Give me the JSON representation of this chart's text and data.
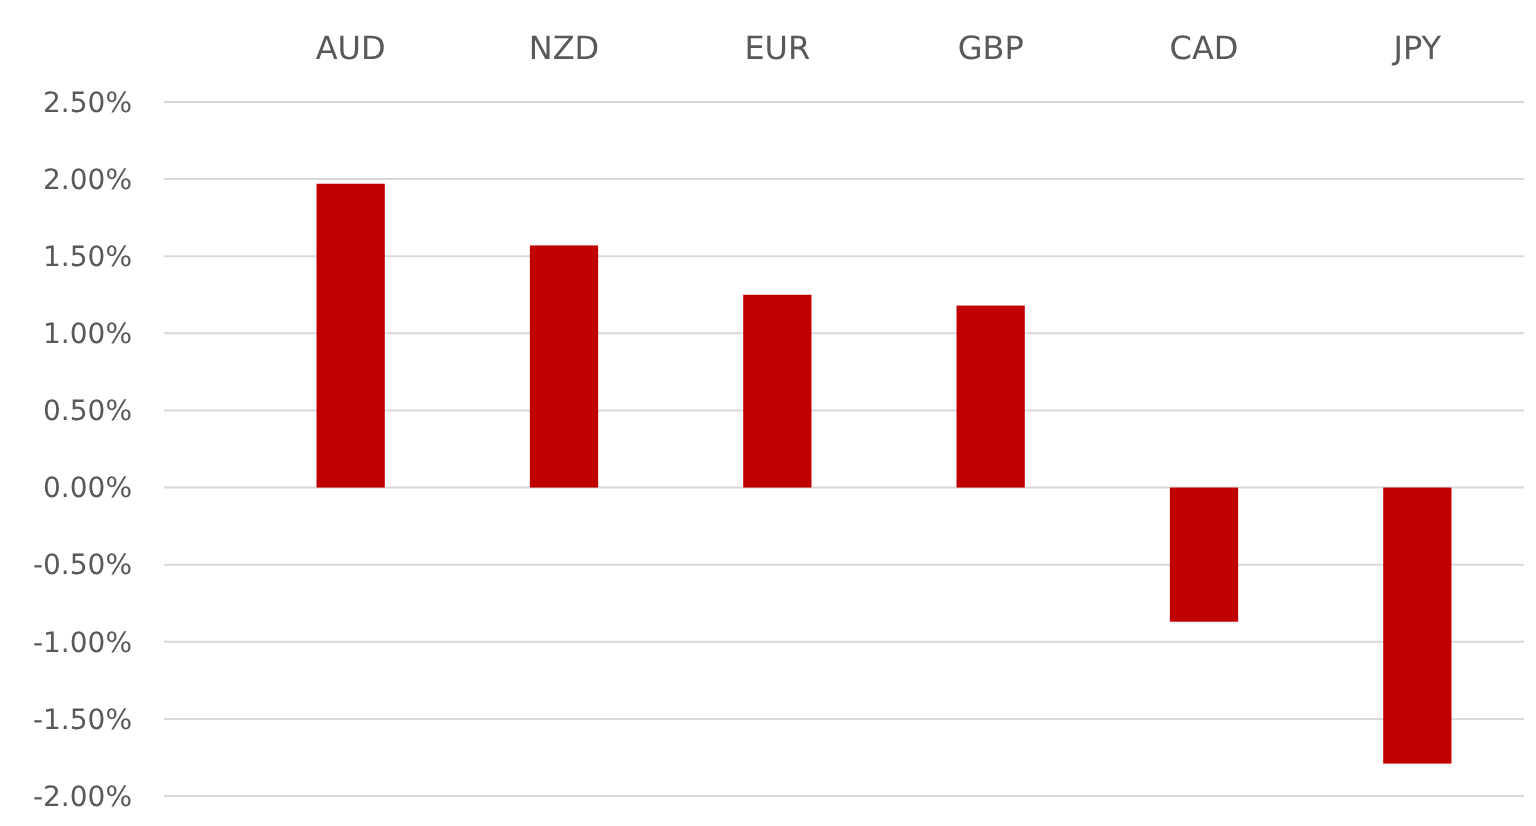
{
  "chart_data": {
    "type": "bar",
    "categories": [
      "AUD",
      "NZD",
      "EUR",
      "GBP",
      "CAD",
      "JPY"
    ],
    "values": [
      1.97,
      1.57,
      1.25,
      1.18,
      -0.87,
      -1.79
    ],
    "color": "#c00000",
    "ylim": [
      -2,
      2.5
    ],
    "yticks": [
      {
        "value": 2.5,
        "label": "2.50%"
      },
      {
        "value": 2,
        "label": "2.00%"
      },
      {
        "value": 1.5,
        "label": "1.50%"
      },
      {
        "value": 1,
        "label": "1.00%"
      },
      {
        "value": 0.5,
        "label": "0.50%"
      },
      {
        "value": 0,
        "label": "0.00%"
      },
      {
        "value": -0.5,
        "label": "-0.50%"
      },
      {
        "value": -1,
        "label": "-1.00%"
      },
      {
        "value": -1.5,
        "label": "-1.50%"
      },
      {
        "value": -2,
        "label": "-2.00%"
      }
    ],
    "grid": "y"
  }
}
